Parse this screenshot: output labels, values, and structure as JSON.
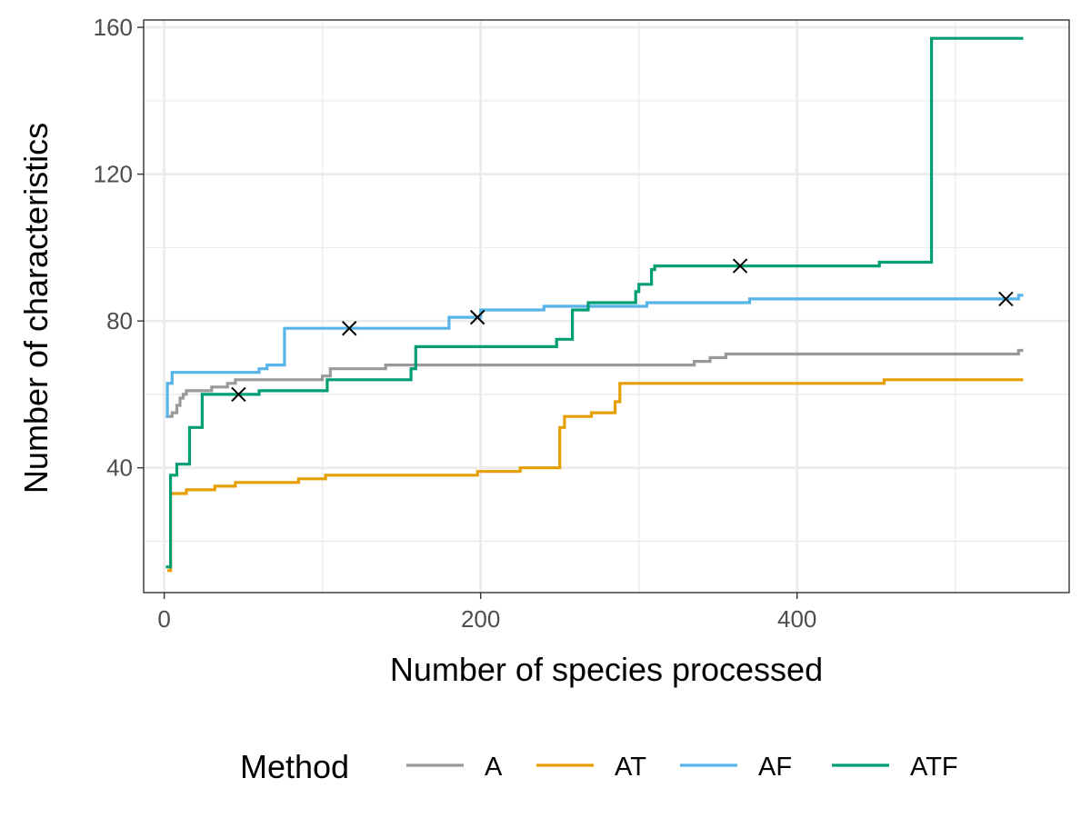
{
  "chart_data": {
    "type": "line",
    "line_shape": "step",
    "title": "",
    "xlabel": "Number of species processed",
    "ylabel": "Number of characteristics",
    "xlim": [
      -13,
      572
    ],
    "ylim": [
      6,
      162
    ],
    "x_ticks": [
      0,
      200,
      400
    ],
    "y_ticks": [
      40,
      80,
      120,
      160
    ],
    "x_minor_ticks": [
      100,
      300,
      500
    ],
    "y_minor_ticks": [
      20,
      60,
      100,
      140
    ],
    "grid": true,
    "legend": {
      "title": "Method",
      "position": "bottom"
    },
    "series": [
      {
        "name": "A",
        "color": "#999999",
        "points": [
          [
            1,
            54
          ],
          [
            5,
            55
          ],
          [
            8,
            57
          ],
          [
            10,
            59
          ],
          [
            12,
            60
          ],
          [
            14,
            61
          ],
          [
            30,
            62
          ],
          [
            40,
            63
          ],
          [
            45,
            64
          ],
          [
            100,
            65
          ],
          [
            105,
            67
          ],
          [
            140,
            68
          ],
          [
            335,
            69
          ],
          [
            345,
            70
          ],
          [
            355,
            71
          ],
          [
            540,
            72
          ],
          [
            543,
            72
          ]
        ]
      },
      {
        "name": "AT",
        "color": "#E69F00",
        "points": [
          [
            2,
            12
          ],
          [
            4,
            33
          ],
          [
            14,
            34
          ],
          [
            32,
            35
          ],
          [
            45,
            36
          ],
          [
            85,
            37
          ],
          [
            102,
            38
          ],
          [
            198,
            39
          ],
          [
            225,
            40
          ],
          [
            250,
            51
          ],
          [
            253,
            54
          ],
          [
            270,
            55
          ],
          [
            285,
            58
          ],
          [
            288,
            63
          ],
          [
            455,
            64
          ],
          [
            543,
            64
          ]
        ]
      },
      {
        "name": "AF",
        "color": "#56B4E9",
        "points": [
          [
            1,
            54
          ],
          [
            2,
            63
          ],
          [
            5,
            66
          ],
          [
            60,
            67
          ],
          [
            65,
            68
          ],
          [
            76,
            78
          ],
          [
            180,
            81
          ],
          [
            200,
            83
          ],
          [
            240,
            84
          ],
          [
            305,
            85
          ],
          [
            370,
            86
          ],
          [
            540,
            87
          ],
          [
            543,
            87
          ]
        ]
      },
      {
        "name": "ATF",
        "color": "#009E73",
        "points": [
          [
            1,
            13
          ],
          [
            4,
            38
          ],
          [
            8,
            41
          ],
          [
            16,
            51
          ],
          [
            24,
            60
          ],
          [
            60,
            61
          ],
          [
            103,
            64
          ],
          [
            156,
            67
          ],
          [
            159,
            73
          ],
          [
            248,
            75
          ],
          [
            258,
            83
          ],
          [
            268,
            85
          ],
          [
            298,
            88
          ],
          [
            300,
            90
          ],
          [
            308,
            94
          ],
          [
            310,
            95
          ],
          [
            452,
            96
          ],
          [
            485,
            157
          ],
          [
            543,
            157
          ]
        ]
      }
    ],
    "markers": {
      "symbol": "x",
      "color": "#000000",
      "points": [
        [
          47,
          60
        ],
        [
          117,
          78
        ],
        [
          198,
          81
        ],
        [
          364,
          95
        ],
        [
          532,
          86
        ]
      ]
    }
  }
}
